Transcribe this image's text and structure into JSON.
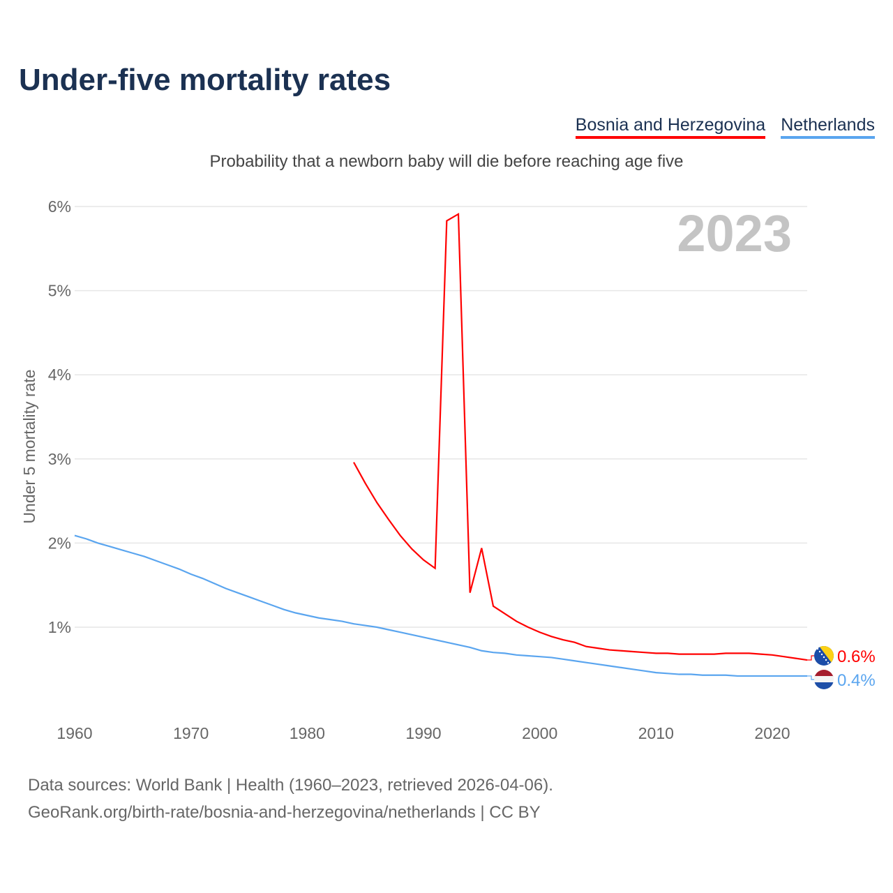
{
  "title": "Under-five mortality rates",
  "subtitle": "Probability that a newborn baby will die before reaching age five",
  "year_label": "2023",
  "footer": {
    "line1": "Data sources: World Bank | Health (1960–2023, retrieved 2026-04-06).",
    "line2": "GeoRank.org/birth-rate/bosnia-and-herzegovina/netherlands | CC BY"
  },
  "chart_data": {
    "type": "line",
    "title": "Under-five mortality rates",
    "ylabel": "Under 5 mortality rate",
    "xlabel": "",
    "xlim": [
      1960,
      2023
    ],
    "ylim": [
      0,
      6
    ],
    "x_ticks": [
      "1960",
      "1970",
      "1980",
      "1990",
      "2000",
      "2010",
      "2020"
    ],
    "y_ticks": [
      "1%",
      "2%",
      "3%",
      "4%",
      "5%",
      "6%"
    ],
    "grid": true,
    "legend_position": "top-right",
    "series": [
      {
        "name": "Bosnia and Herzegovina",
        "color": "#ff0000",
        "end_label": "0.6%",
        "start_year": 1984,
        "values": [
          2.96,
          2.71,
          2.48,
          2.28,
          2.09,
          1.93,
          1.8,
          1.7,
          5.83,
          5.91,
          1.41,
          1.94,
          1.25,
          1.16,
          1.07,
          1.0,
          0.94,
          0.89,
          0.85,
          0.82,
          0.77,
          0.75,
          0.73,
          0.72,
          0.71,
          0.7,
          0.69,
          0.69,
          0.68,
          0.68,
          0.68,
          0.68,
          0.69,
          0.69,
          0.69,
          0.68,
          0.67,
          0.65,
          0.63,
          0.61
        ]
      },
      {
        "name": "Netherlands",
        "color": "#5aa5ef",
        "end_label": "0.4%",
        "start_year": 1960,
        "values": [
          2.09,
          2.05,
          2.0,
          1.96,
          1.92,
          1.88,
          1.84,
          1.79,
          1.74,
          1.69,
          1.63,
          1.58,
          1.52,
          1.46,
          1.41,
          1.36,
          1.31,
          1.26,
          1.21,
          1.17,
          1.14,
          1.11,
          1.09,
          1.07,
          1.04,
          1.02,
          1.0,
          0.97,
          0.94,
          0.91,
          0.88,
          0.85,
          0.82,
          0.79,
          0.76,
          0.72,
          0.7,
          0.69,
          0.67,
          0.66,
          0.65,
          0.64,
          0.62,
          0.6,
          0.58,
          0.56,
          0.54,
          0.52,
          0.5,
          0.48,
          0.46,
          0.45,
          0.44,
          0.44,
          0.43,
          0.43,
          0.43,
          0.42,
          0.42,
          0.42,
          0.42,
          0.42,
          0.42,
          0.42
        ]
      }
    ]
  }
}
